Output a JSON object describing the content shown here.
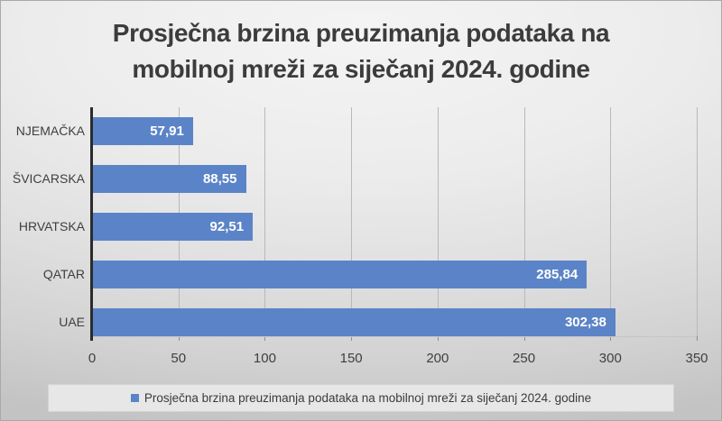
{
  "title": {
    "text": "Prosječna brzina preuzimanja podataka na mobilnoj mreži za siječanj 2024. godine"
  },
  "legend": {
    "label": "Prosječna brzina preuzimanja podataka na mobilnoj mreži za siječanj 2024. godine",
    "marker_color": "#5B84C8",
    "position": "bottom"
  },
  "chart_data": {
    "type": "bar",
    "orientation": "horizontal",
    "title": "Prosječna brzina preuzimanja podataka na mobilnoj mreži za siječanj 2024. godine",
    "categories": [
      "NJEMAČKA",
      "ŠVICARSKA",
      "HRVATSKA",
      "QATAR",
      "UAE"
    ],
    "values": [
      57.91,
      88.55,
      92.51,
      285.84,
      302.38
    ],
    "value_labels": [
      "57,91",
      "88,55",
      "92,51",
      "285,84",
      "302,38"
    ],
    "series_name": "Prosječna brzina preuzimanja podataka na mobilnoj mreži za siječanj 2024. godine",
    "x_ticks": [
      0,
      50,
      100,
      150,
      200,
      250,
      300,
      350
    ],
    "xlim": [
      0,
      350
    ],
    "xlabel": "",
    "ylabel": "",
    "grid": true,
    "legend_position": "bottom",
    "bar_color": "#5B84C8",
    "value_label_color": "#ffffff",
    "axis_line_color": "#2b2b2b",
    "gridline_color": "#b9b9b9",
    "text_color": "#3f3f3f"
  }
}
